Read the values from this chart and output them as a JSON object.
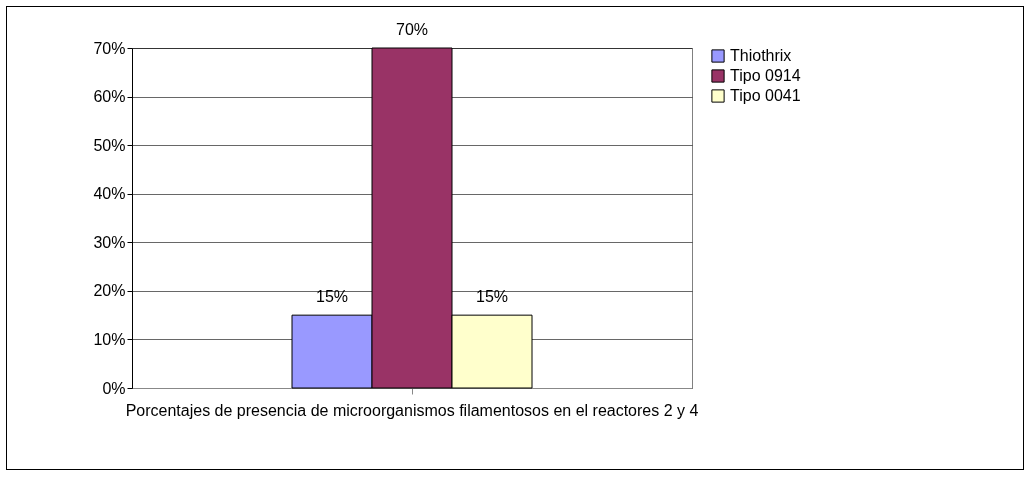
{
  "chart_data": {
    "type": "bar",
    "categories": [
      "Porcentajes de presencia de microorganismos filamentosos en el reactores 2 y 4"
    ],
    "series": [
      {
        "name": "Thiothrix",
        "color": "#9999ff",
        "values": [
          15
        ],
        "value_labels": [
          "15%"
        ]
      },
      {
        "name": "Tipo 0914",
        "color": "#993366",
        "values": [
          70
        ],
        "value_labels": [
          "70%"
        ]
      },
      {
        "name": "Tipo 0041",
        "color": "#ffffcc",
        "values": [
          15
        ],
        "value_labels": [
          "15%"
        ]
      }
    ],
    "ylim": [
      0,
      70
    ],
    "yticks": [
      {
        "value": 0,
        "label": "0%"
      },
      {
        "value": 10,
        "label": "10%"
      },
      {
        "value": 20,
        "label": "20%"
      },
      {
        "value": 30,
        "label": "30%"
      },
      {
        "value": 40,
        "label": "40%"
      },
      {
        "value": 50,
        "label": "50%"
      },
      {
        "value": 60,
        "label": "60%"
      },
      {
        "value": 70,
        "label": "70%"
      }
    ],
    "grid": "y",
    "legend": "right"
  }
}
